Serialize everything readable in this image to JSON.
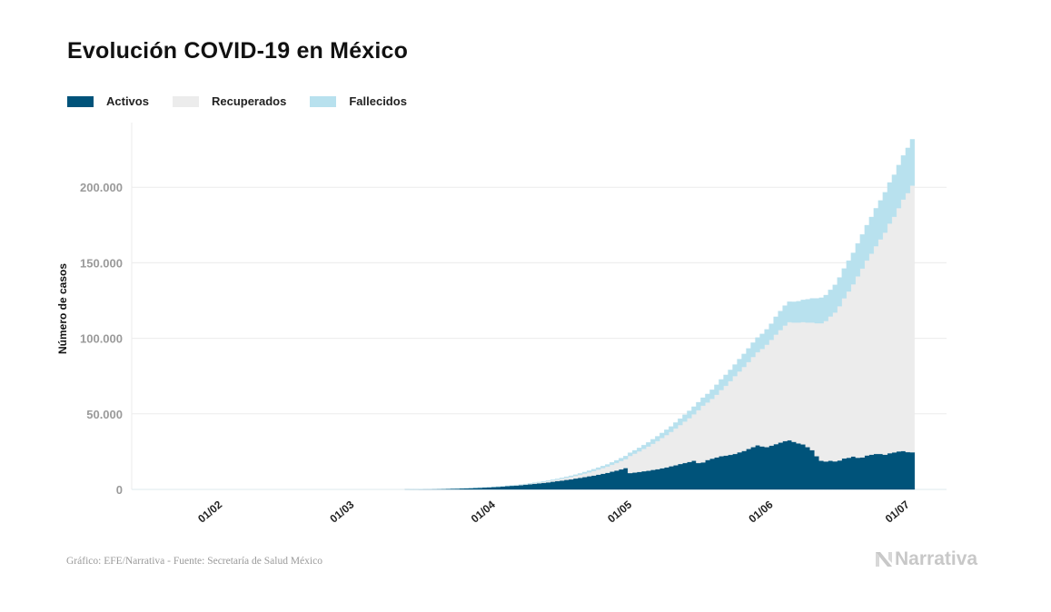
{
  "header": {
    "title": "Evolución COVID-19 en México"
  },
  "legend": [
    {
      "label": "Activos",
      "color": "#00537a"
    },
    {
      "label": "Recuperados",
      "color": "#ececec"
    },
    {
      "label": "Fallecidos",
      "color": "#b8e1ee"
    }
  ],
  "footer": {
    "source": "Gráfico: EFE/Narrativa - Fuente: Secretaría de Salud México",
    "brand": "Narrativa"
  },
  "chart_data": {
    "type": "area",
    "stacked": true,
    "step": true,
    "title": "Evolución COVID-19 en México",
    "xlabel": "",
    "ylabel": "Número de casos",
    "x_start": "2020-03-12",
    "x_end": "2020-07-01",
    "x_domain": [
      "2020-01-12",
      "2020-07-09"
    ],
    "ylim": [
      0,
      232000
    ],
    "yticks": [
      0,
      50000,
      100000,
      150000,
      200000
    ],
    "ytick_labels": [
      "0",
      "50.000",
      "100.000",
      "150.000",
      "200.000"
    ],
    "xticks": [
      "2020-02-01",
      "2020-03-01",
      "2020-04-01",
      "2020-05-01",
      "2020-06-01",
      "2020-07-01"
    ],
    "xtick_labels": [
      "01/02",
      "01/03",
      "01/04",
      "01/05",
      "01/06",
      "01/07"
    ],
    "grid": "horizontal",
    "legend_position": "top-left",
    "series": [
      {
        "name": "Activos",
        "color": "#00537a",
        "values": [
          20,
          40,
          80,
          120,
          160,
          200,
          260,
          300,
          370,
          440,
          520,
          600,
          700,
          800,
          900,
          1000,
          1150,
          1300,
          1450,
          1600,
          1800,
          2000,
          2200,
          2400,
          2600,
          2800,
          3100,
          3400,
          3700,
          4000,
          4300,
          4700,
          5100,
          5500,
          5900,
          6300,
          6700,
          7200,
          7700,
          8200,
          8700,
          9200,
          9800,
          10400,
          11000,
          11800,
          12500,
          13300,
          14100,
          10800,
          11200,
          11600,
          12000,
          12400,
          12900,
          13400,
          14000,
          14600,
          15300,
          16000,
          16800,
          17500,
          18200,
          19000,
          17500,
          17900,
          19500,
          20400,
          21200,
          22000,
          22400,
          22900,
          23500,
          24600,
          25500,
          26800,
          28000,
          29200,
          28500,
          28000,
          29000,
          30000,
          31000,
          32000,
          32500,
          31500,
          30500,
          29800,
          28000,
          26000,
          22000,
          19000,
          18500,
          19000,
          18600,
          19200,
          20500,
          21000,
          21800,
          21000,
          21200,
          22500,
          23000,
          23500,
          23500,
          23000,
          24000,
          24500,
          25200,
          25400,
          24700,
          24600
        ]
      },
      {
        "name": "Recuperados",
        "color": "#ececec",
        "values": [
          0,
          0,
          0,
          0,
          0,
          0,
          0,
          0,
          0,
          0,
          0,
          0,
          0,
          0,
          0,
          0,
          0,
          0,
          0,
          0,
          0,
          0,
          100,
          150,
          200,
          250,
          300,
          400,
          500,
          600,
          700,
          800,
          900,
          1000,
          1200,
          1400,
          1600,
          1800,
          2000,
          2300,
          2600,
          3000,
          3300,
          3700,
          4100,
          4500,
          5000,
          5500,
          6000,
          11400,
          12500,
          13600,
          14800,
          16000,
          17300,
          18600,
          20000,
          21400,
          22800,
          24300,
          25800,
          27400,
          29000,
          30700,
          35000,
          37500,
          38000,
          39500,
          41500,
          43800,
          46200,
          48800,
          51500,
          53500,
          55600,
          57500,
          59700,
          61600,
          64500,
          67800,
          70000,
          72500,
          74500,
          76500,
          78200,
          79000,
          80000,
          81000,
          82500,
          84500,
          88000,
          91000,
          93000,
          95500,
          98500,
          102000,
          106000,
          110000,
          114000,
          120000,
          125000,
          129000,
          133000,
          137500,
          142000,
          147000,
          152000,
          156000,
          161000,
          166500,
          171500,
          176500
        ]
      },
      {
        "name": "Fallecidos",
        "color": "#b8e1ee",
        "values": [
          0,
          0,
          0,
          0,
          0,
          0,
          0,
          1,
          2,
          3,
          4,
          5,
          6,
          8,
          12,
          16,
          20,
          28,
          37,
          50,
          60,
          79,
          94,
          125,
          141,
          174,
          194,
          233,
          273,
          296,
          332,
          406,
          449,
          486,
          546,
          650,
          686,
          712,
          857,
          970,
          1069,
          1221,
          1305,
          1351,
          1434,
          1569,
          1732,
          1859,
          1972,
          2061,
          2154,
          2271,
          2507,
          2704,
          2961,
          3160,
          3353,
          3465,
          3573,
          3926,
          4220,
          4477,
          4767,
          5045,
          5177,
          5332,
          5666,
          6090,
          6510,
          6989,
          7179,
          7394,
          7633,
          8134,
          8597,
          9044,
          9415,
          9779,
          9930,
          10167,
          10637,
          11729,
          12545,
          13170,
          13511,
          13699,
          14053,
          14649,
          15357,
          15944,
          16448,
          16872,
          17141,
          17580,
          18310,
          19080,
          19747,
          20394,
          20781,
          21825,
          22584,
          23377,
          24324,
          25060,
          25779,
          26648,
          27121,
          27769,
          28510,
          29189,
          29843,
          30639
        ]
      }
    ]
  }
}
